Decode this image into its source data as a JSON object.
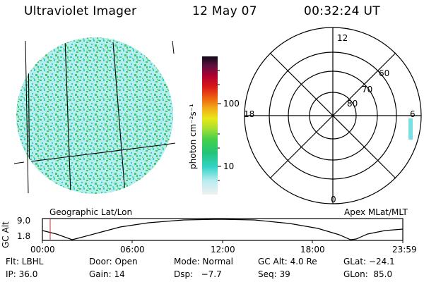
{
  "header": {
    "instrument": "Ultraviolet Imager",
    "date": "12 May 07",
    "time": "00:32:24 UT"
  },
  "colorbar": {
    "label": "photon cm⁻²s⁻¹",
    "ticks": [
      "100",
      "10"
    ]
  },
  "left_panel": {
    "caption": "Geographic Lat/Lon"
  },
  "polar": {
    "caption": "Apex MLat/MLT",
    "mlt_labels": [
      "12",
      "18",
      "6",
      "0"
    ],
    "mlat_labels": [
      "60",
      "70",
      "80"
    ]
  },
  "altitude_plot": {
    "ylabel": "GC Alt",
    "y_ticks": [
      "9.0",
      "1.8"
    ],
    "x_ticks": [
      "00:00",
      "06:00",
      "12:00",
      "18:00",
      "23:59"
    ]
  },
  "info": {
    "row1": [
      "Flt: LBHL",
      "Door: Open",
      "Mode: Normal",
      "GC Alt: 4.0 Re",
      "GLat: −24.1"
    ],
    "row2": [
      "IP: 36.0",
      "Gain: 14",
      "Dsp:   −7.7",
      "Seq: 39",
      "GLon:  85.0"
    ]
  },
  "colors": {
    "image_base": "#b9ecee",
    "speckle_green": "#3ec96e",
    "speckle_teal": "#2fd3c2",
    "current_time_marker": "#c03030"
  }
}
